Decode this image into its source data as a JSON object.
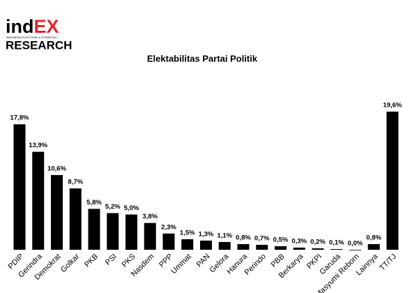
{
  "logo": {
    "brand_main": "ind",
    "brand_accent": "EX",
    "tagline": "INDONESIA ELECTIONS & STRATEGIC",
    "sub": "RESEARCH"
  },
  "chart_data": {
    "type": "bar",
    "title": "Elektabilitas Partai Politik",
    "color": "#000000",
    "categories": [
      "PDIP",
      "Gerindra",
      "Demokrat",
      "Golkar",
      "PKB",
      "PSI",
      "PKS",
      "Nasdem",
      "PPP",
      "Ummat",
      "PAN",
      "Gelora",
      "Hanura",
      "Perindo",
      "PBB",
      "Berkarya",
      "PKPI",
      "Garuda",
      "Masyumi Reborn",
      "Lainnya",
      "TT/TJ"
    ],
    "values": [
      17.8,
      13.9,
      10.6,
      8.7,
      5.8,
      5.2,
      5.0,
      3.8,
      2.3,
      1.5,
      1.3,
      1.1,
      0.8,
      0.7,
      0.5,
      0.3,
      0.2,
      0.1,
      0.0,
      0.8,
      19.6
    ],
    "value_labels": [
      "17,8%",
      "13,9%",
      "10,6%",
      "8,7%",
      "5,8%",
      "5,2%",
      "5,0%",
      "3,8%",
      "2,3%",
      "1,5%",
      "1,3%",
      "1,1%",
      "0,8%",
      "0,7%",
      "0,5%",
      "0,3%",
      "0,2%",
      "0,1%",
      "0,0%",
      "0,8%",
      "19,6%"
    ]
  }
}
